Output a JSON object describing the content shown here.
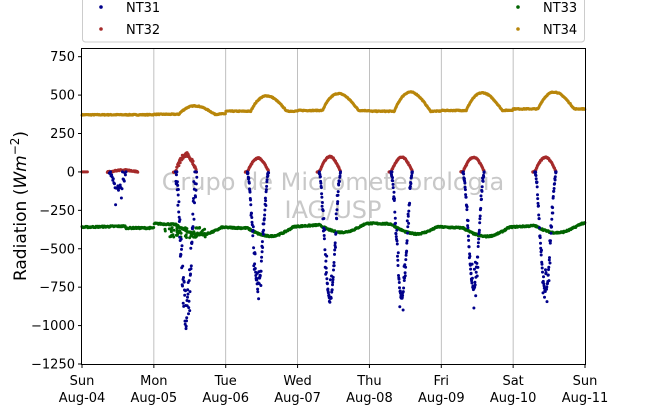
{
  "chart_data": {
    "type": "scatter",
    "ylabel": "Radiation (Wm⁻²)",
    "ylabel_prefix": "Radiation (",
    "ylabel_unit": "Wm",
    "ylabel_exp": "−2",
    "ylabel_suffix": ")",
    "ylim": [
      -1250,
      800
    ],
    "yticks": [
      800,
      750,
      500,
      250,
      0,
      -250,
      -500,
      -750,
      -1000,
      -1250
    ],
    "ytick_labels": [
      "750",
      "500",
      "250",
      "0",
      "−250",
      "−500",
      "−750",
      "−1000",
      "−1250"
    ],
    "ytick_values": [
      750,
      500,
      250,
      0,
      -250,
      -500,
      -750,
      -1000,
      -1250
    ],
    "xlim": [
      "2019-08-04",
      "2019-08-11"
    ],
    "xticks": [
      {
        "day": "Sun",
        "date": "Aug-04"
      },
      {
        "day": "Mon",
        "date": "Aug-05"
      },
      {
        "day": "Tue",
        "date": "Aug-06"
      },
      {
        "day": "Wed",
        "date": "Aug-07"
      },
      {
        "day": "Thu",
        "date": "Aug-08"
      },
      {
        "day": "Fri",
        "date": "Aug-09"
      },
      {
        "day": "Sat",
        "date": "Aug-10"
      },
      {
        "day": "Sun",
        "date": "Aug-11"
      }
    ],
    "grid": "vertical",
    "legend_placement": "top",
    "watermark": [
      "Grupo de Micrometeorologia",
      "IAG/USP"
    ],
    "series": [
      {
        "name": "NT31",
        "color": "#00008b",
        "description_values": {
          "day_min": [
            -120,
            -930,
            -760,
            -860,
            -840,
            -780,
            -800
          ],
          "night": 0
        }
      },
      {
        "name": "NT32",
        "color": "#a52a2a",
        "description_values": {
          "day_max": [
            12,
            110,
            90,
            100,
            95,
            95,
            95
          ],
          "night": 0
        }
      },
      {
        "name": "NT33",
        "color": "#006400",
        "description_values": {
          "night": -355,
          "day": -400
        }
      },
      {
        "name": "NT34",
        "color": "#b8860b",
        "description_values": {
          "night_min": [
            372,
            375,
            395,
            400,
            395,
            400,
            410
          ],
          "day_max": [
            372,
            430,
            495,
            510,
            520,
            515,
            520
          ]
        }
      }
    ]
  }
}
